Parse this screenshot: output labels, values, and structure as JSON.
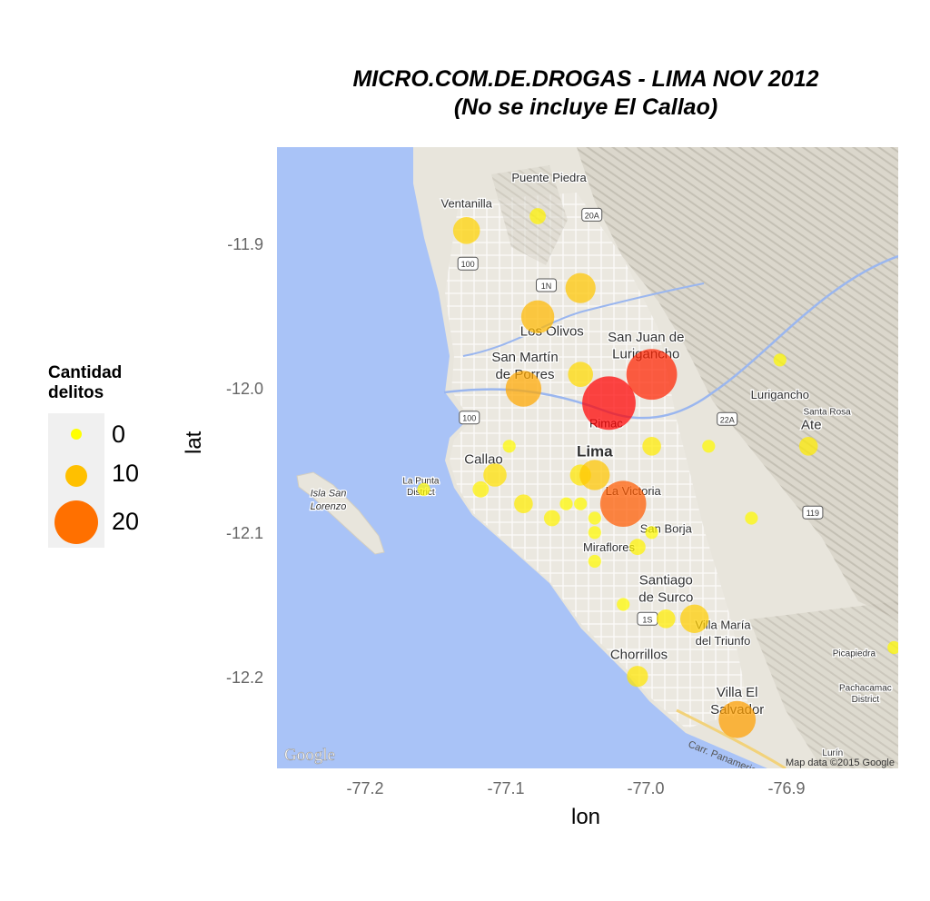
{
  "chart_data": {
    "type": "scatter",
    "title": "MICRO.COM.DE.DROGAS - LIMA NOV 2012",
    "subtitle": "(No se incluye El Callao)",
    "xlabel": "lon",
    "ylabel": "lat",
    "xlim": [
      -77.263,
      -76.827
    ],
    "ylim": [
      -12.264,
      -11.832
    ],
    "xticks": [
      "-77.2",
      "-77.1",
      "-77.0",
      "-76.9"
    ],
    "yticks": [
      "-11.9",
      "-12.0",
      "-12.1",
      "-12.2"
    ],
    "grid": false,
    "legend": {
      "title_line1": "Cantidad",
      "title_line2": "delitos",
      "placement": "left",
      "entries": [
        {
          "label": "0",
          "value": 0,
          "color": "#ffff00"
        },
        {
          "label": "10",
          "value": 10,
          "color": "#ffc000"
        },
        {
          "label": "20",
          "value": 20,
          "color": "#ff7000"
        }
      ]
    },
    "size_scale": "cantidad delitos (area proportional)",
    "color_scale": [
      "#ffff00",
      "#ffc000",
      "#ff7000",
      "#ff0000"
    ],
    "points": [
      {
        "lon": -77.13,
        "lat": -11.89,
        "value": 7
      },
      {
        "lon": -77.08,
        "lat": -11.88,
        "value": 2
      },
      {
        "lon": -77.05,
        "lat": -11.93,
        "value": 9
      },
      {
        "lon": -77.08,
        "lat": -11.95,
        "value": 11
      },
      {
        "lon": -77.09,
        "lat": -12.0,
        "value": 13
      },
      {
        "lon": -77.05,
        "lat": -11.99,
        "value": 6
      },
      {
        "lon": -77.0,
        "lat": -11.99,
        "value": 27
      },
      {
        "lon": -77.03,
        "lat": -12.01,
        "value": 30
      },
      {
        "lon": -76.91,
        "lat": -11.98,
        "value": 1
      },
      {
        "lon": -77.1,
        "lat": -12.04,
        "value": 1
      },
      {
        "lon": -77.0,
        "lat": -12.04,
        "value": 3
      },
      {
        "lon": -76.96,
        "lat": -12.04,
        "value": 1
      },
      {
        "lon": -76.89,
        "lat": -12.04,
        "value": 3
      },
      {
        "lon": -77.11,
        "lat": -12.06,
        "value": 5
      },
      {
        "lon": -77.05,
        "lat": -12.06,
        "value": 4
      },
      {
        "lon": -77.04,
        "lat": -12.06,
        "value": 9
      },
      {
        "lon": -77.02,
        "lat": -12.08,
        "value": 22
      },
      {
        "lon": -77.16,
        "lat": -12.07,
        "value": 1
      },
      {
        "lon": -77.12,
        "lat": -12.07,
        "value": 2
      },
      {
        "lon": -77.09,
        "lat": -12.08,
        "value": 3
      },
      {
        "lon": -77.06,
        "lat": -12.08,
        "value": 1
      },
      {
        "lon": -77.05,
        "lat": -12.08,
        "value": 1
      },
      {
        "lon": -77.07,
        "lat": -12.09,
        "value": 2
      },
      {
        "lon": -77.04,
        "lat": -12.09,
        "value": 1
      },
      {
        "lon": -77.04,
        "lat": -12.1,
        "value": 1
      },
      {
        "lon": -77.0,
        "lat": -12.1,
        "value": 1
      },
      {
        "lon": -77.01,
        "lat": -12.11,
        "value": 2
      },
      {
        "lon": -76.93,
        "lat": -12.09,
        "value": 1
      },
      {
        "lon": -77.04,
        "lat": -12.12,
        "value": 1
      },
      {
        "lon": -77.02,
        "lat": -12.15,
        "value": 1
      },
      {
        "lon": -76.99,
        "lat": -12.16,
        "value": 3
      },
      {
        "lon": -76.97,
        "lat": -12.16,
        "value": 8
      },
      {
        "lon": -77.01,
        "lat": -12.2,
        "value": 4
      },
      {
        "lon": -76.94,
        "lat": -12.23,
        "value": 14
      },
      {
        "lon": -76.83,
        "lat": -12.18,
        "value": 1
      }
    ],
    "map_labels": [
      {
        "text": "Puente Piedra",
        "lon": -77.072,
        "lat": -11.856,
        "size": "m"
      },
      {
        "text": "Ventanilla",
        "lon": -77.13,
        "lat": -11.874,
        "size": "m"
      },
      {
        "text": "Los Olivos",
        "lon": -77.07,
        "lat": -11.963,
        "size": "l"
      },
      {
        "text": "San Martín",
        "lon": -77.089,
        "lat": -11.981,
        "size": "l"
      },
      {
        "text": "de Porres",
        "lon": -77.089,
        "lat": -11.993,
        "size": "l"
      },
      {
        "text": "San Juan de",
        "lon": -77.004,
        "lat": -11.967,
        "size": "l"
      },
      {
        "text": "Lurigancho",
        "lon": -77.004,
        "lat": -11.979,
        "size": "l"
      },
      {
        "text": "Lurigancho",
        "lon": -76.91,
        "lat": -12.007,
        "size": "m"
      },
      {
        "text": "Santa Rosa",
        "lon": -76.877,
        "lat": -12.018,
        "size": "s"
      },
      {
        "text": "Ate",
        "lon": -76.888,
        "lat": -12.028,
        "size": "l"
      },
      {
        "text": "Rimac",
        "lon": -77.032,
        "lat": -12.027,
        "size": "m"
      },
      {
        "text": "Lima",
        "lon": -77.04,
        "lat": -12.047,
        "size": "xl"
      },
      {
        "text": "Callao",
        "lon": -77.118,
        "lat": -12.052,
        "size": "l"
      },
      {
        "text": "La Punta",
        "lon": -77.162,
        "lat": -12.066,
        "size": "s"
      },
      {
        "text": "District",
        "lon": -77.162,
        "lat": -12.074,
        "size": "s"
      },
      {
        "text": "Isla San",
        "lon": -77.227,
        "lat": -12.075,
        "size": "si"
      },
      {
        "text": "Lorenzo",
        "lon": -77.227,
        "lat": -12.084,
        "size": "si"
      },
      {
        "text": "La Victoria",
        "lon": -77.013,
        "lat": -12.074,
        "size": "m"
      },
      {
        "text": "San Borja",
        "lon": -76.99,
        "lat": -12.1,
        "size": "m"
      },
      {
        "text": "Miraflores",
        "lon": -77.03,
        "lat": -12.113,
        "size": "m"
      },
      {
        "text": "Santiago",
        "lon": -76.99,
        "lat": -12.136,
        "size": "l"
      },
      {
        "text": "de Surco",
        "lon": -76.99,
        "lat": -12.148,
        "size": "l"
      },
      {
        "text": "Villa María",
        "lon": -76.95,
        "lat": -12.167,
        "size": "m"
      },
      {
        "text": "del Triunfo",
        "lon": -76.95,
        "lat": -12.178,
        "size": "m"
      },
      {
        "text": "Chorrillos",
        "lon": -77.009,
        "lat": -12.188,
        "size": "l"
      },
      {
        "text": "Picapiedra",
        "lon": -76.858,
        "lat": -12.186,
        "size": "s"
      },
      {
        "text": "Pachacamac",
        "lon": -76.85,
        "lat": -12.21,
        "size": "s"
      },
      {
        "text": "District",
        "lon": -76.85,
        "lat": -12.218,
        "size": "s"
      },
      {
        "text": "Villa El",
        "lon": -76.94,
        "lat": -12.214,
        "size": "l"
      },
      {
        "text": "Salvador",
        "lon": -76.94,
        "lat": -12.226,
        "size": "l"
      },
      {
        "text": "Lurín",
        "lon": -76.873,
        "lat": -12.255,
        "size": "s"
      }
    ],
    "road_shields": [
      {
        "text": "20A",
        "lon": -77.042,
        "lat": -11.879
      },
      {
        "text": "100",
        "lon": -77.129,
        "lat": -11.913
      },
      {
        "text": "1N",
        "lon": -77.074,
        "lat": -11.928
      },
      {
        "text": "100",
        "lon": -77.128,
        "lat": -12.02
      },
      {
        "text": "22A",
        "lon": -76.947,
        "lat": -12.021
      },
      {
        "text": "119",
        "lon": -76.887,
        "lat": -12.086
      },
      {
        "text": "1S",
        "lon": -77.003,
        "lat": -12.16
      }
    ],
    "road_label": "Carr. Panamericana Sur",
    "attribution": "Map data ©2015 Google",
    "logo_text": "Google"
  }
}
